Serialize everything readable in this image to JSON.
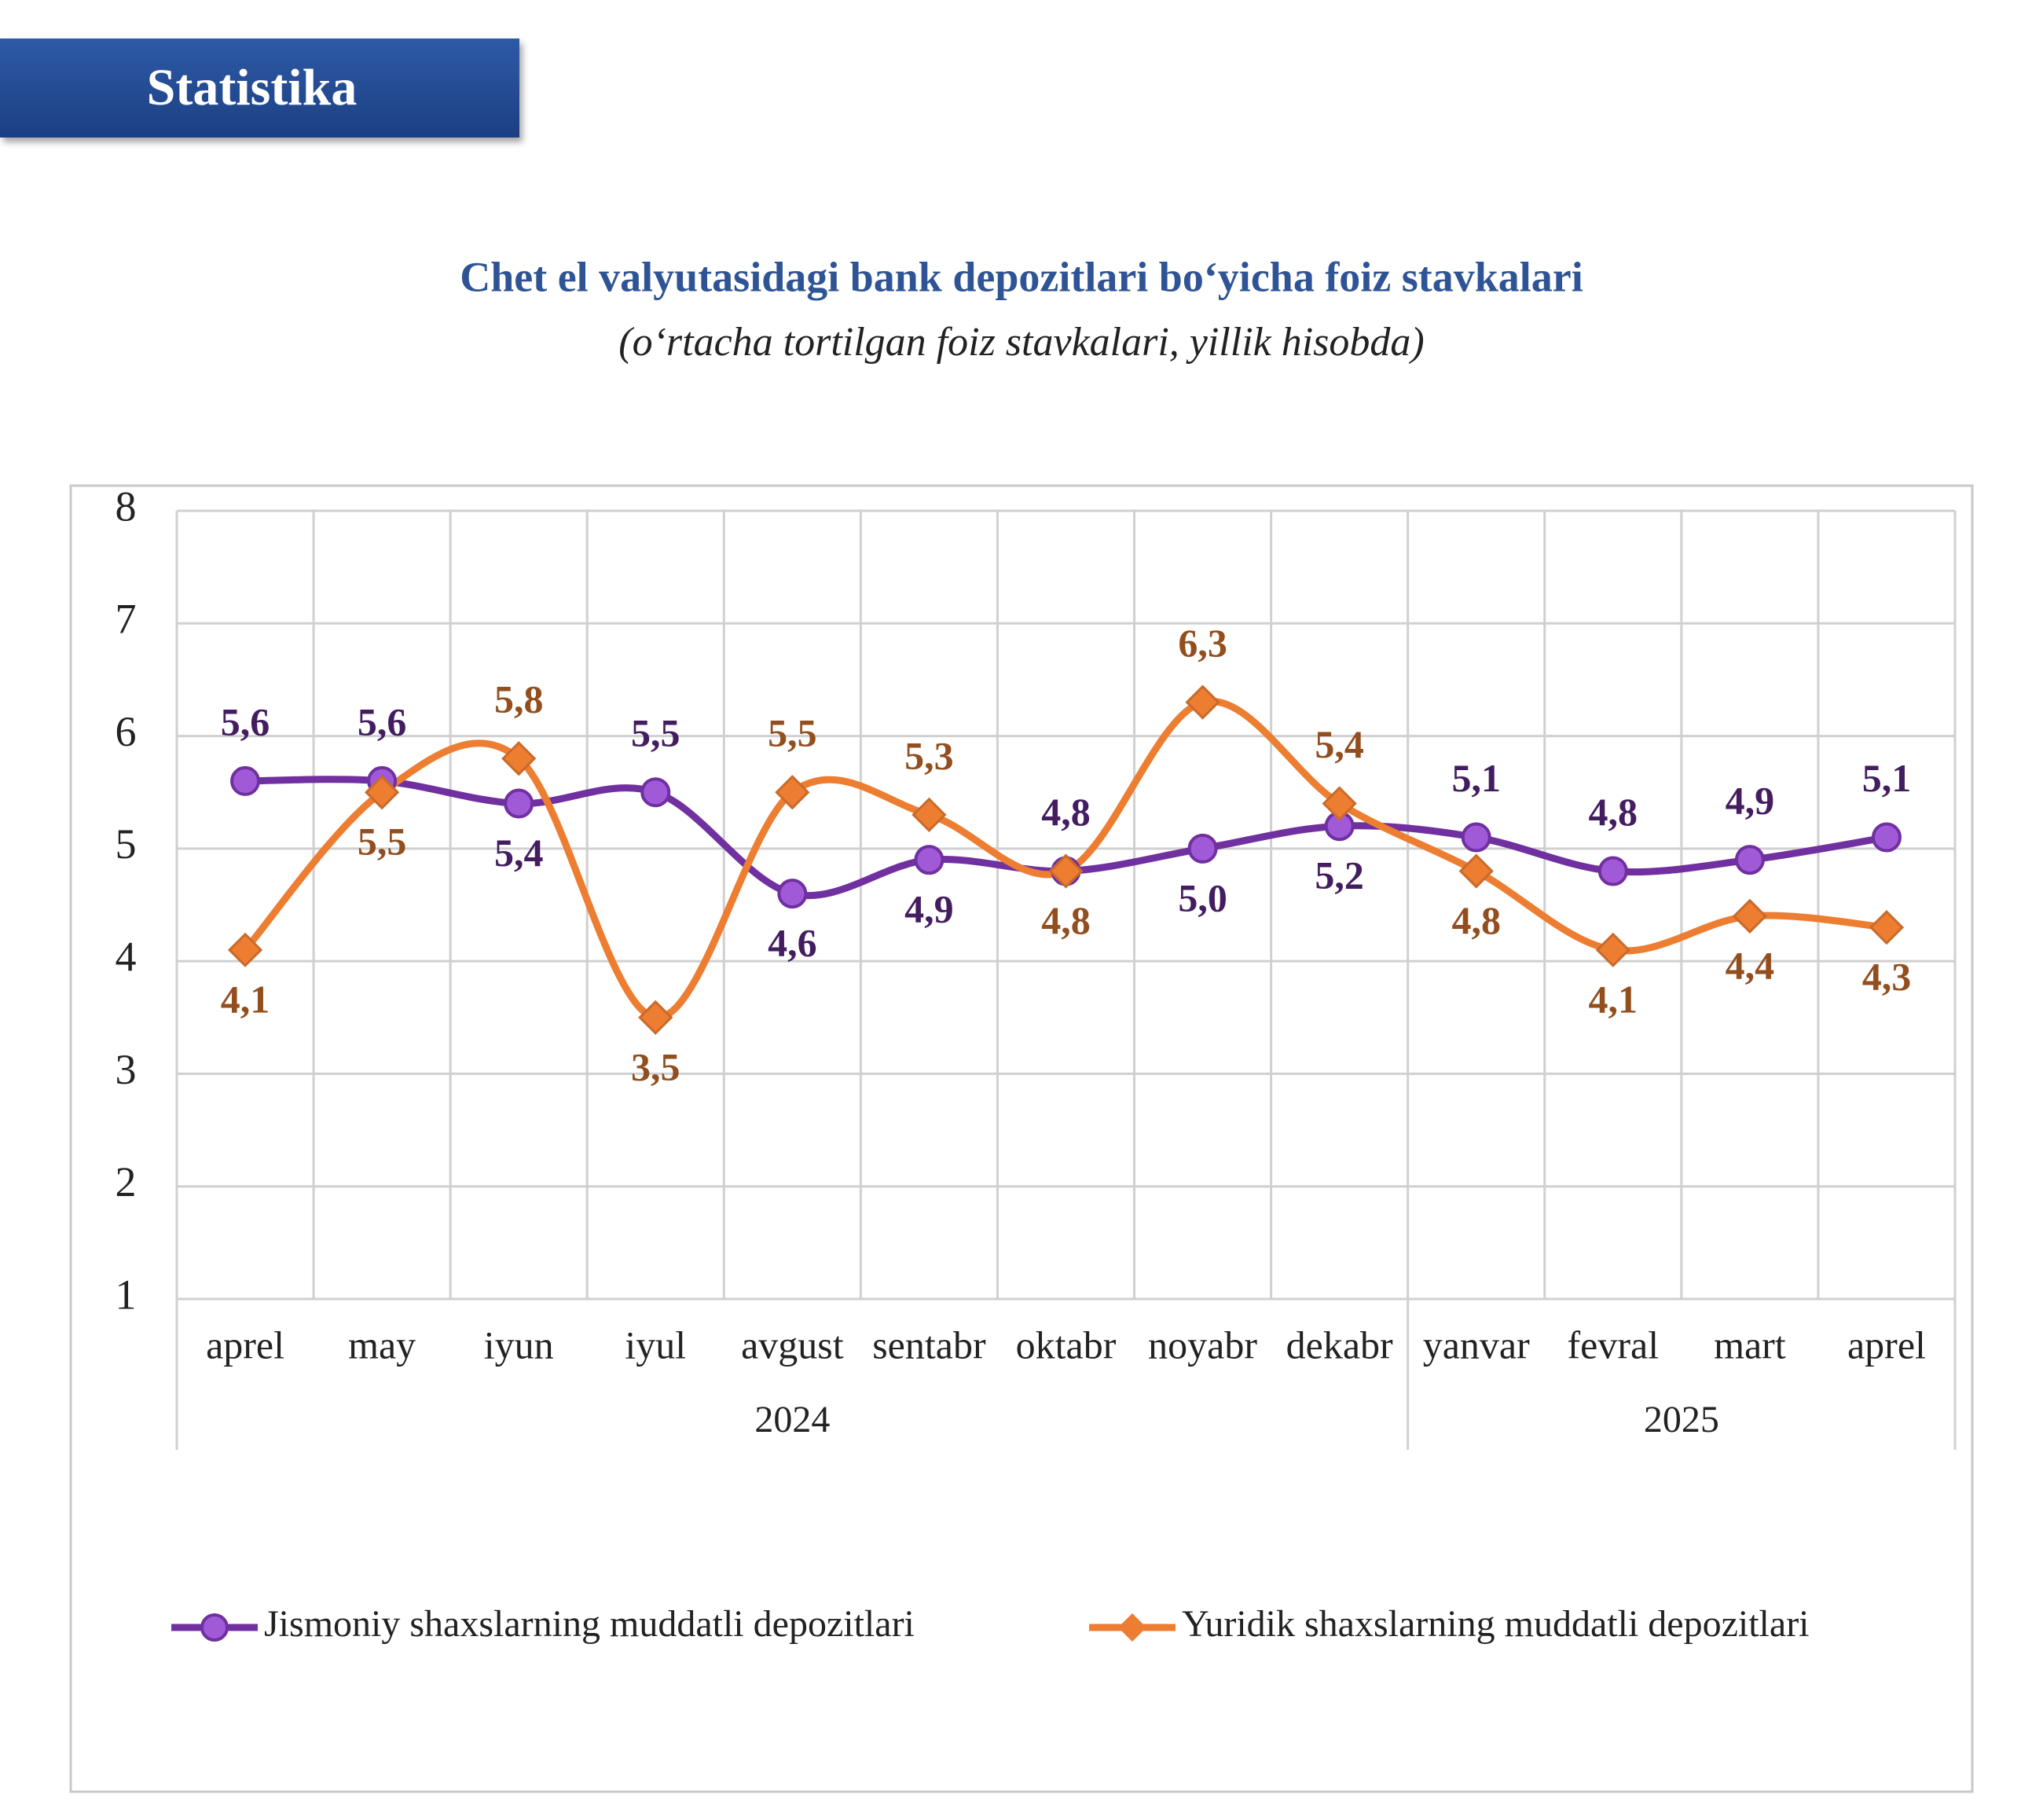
{
  "header": {
    "title": "Statistika"
  },
  "chart_data": {
    "type": "line",
    "title": "Chet el valyutasidagi bank depozitlari bo‘yicha foiz stavkalari",
    "subtitle": "(o‘rtacha tortilgan foiz stavkalari, yillik hisobda)",
    "categories": [
      "aprel",
      "may",
      "iyun",
      "iyul",
      "avgust",
      "sentabr",
      "oktabr",
      "noyabr",
      "dekabr",
      "yanvar",
      "fevral",
      "mart",
      "aprel"
    ],
    "years": [
      "2024",
      "2024",
      "2024",
      "2024",
      "2024",
      "2024",
      "2024",
      "2024",
      "2024",
      "2025",
      "2025",
      "2025",
      "2025"
    ],
    "series": [
      {
        "name": "Jismoniy shaxslarning muddatli depozitlari",
        "color": "#7030a0",
        "marker": "circle",
        "values": [
          5.6,
          5.6,
          5.4,
          5.5,
          4.6,
          4.9,
          4.8,
          5.0,
          5.2,
          5.1,
          4.8,
          4.9,
          5.1
        ],
        "value_labels": [
          "5,6",
          "5,6",
          "5,4",
          "5,5",
          "4,6",
          "4,9",
          "4,8",
          "5,0",
          "5,2",
          "5,1",
          "4,8",
          "4,9",
          "5,1"
        ]
      },
      {
        "name": "Yuridik shaxslarning muddatli depozitlari",
        "color": "#ed7d31",
        "marker": "diamond",
        "values": [
          4.1,
          5.5,
          5.8,
          3.5,
          5.5,
          5.3,
          4.8,
          6.3,
          5.4,
          4.8,
          4.1,
          4.4,
          4.3
        ],
        "value_labels": [
          "4,1",
          "5,5",
          "5,8",
          "3,5",
          "5,5",
          "5,3",
          "4,8",
          "6,3",
          "5,4",
          "4,8",
          "4,1",
          "4,4",
          "4,3"
        ]
      }
    ],
    "ylim": [
      1,
      8
    ],
    "yticks": [
      1,
      2,
      3,
      4,
      5,
      6,
      7,
      8
    ],
    "grid": true,
    "smooth": true,
    "legend": "bottom"
  }
}
